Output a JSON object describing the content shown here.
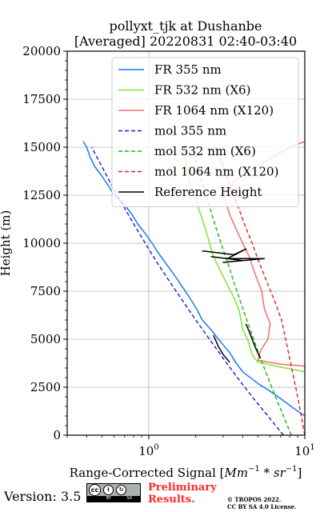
{
  "chart_data": {
    "type": "line",
    "title": "pollyxt_tjk at Dushanbe",
    "subtitle": "[Averaged] 20220831 02:40-03:40",
    "xlabel": "Range-Corrected Signal [",
    "xlabel_math": "Mm",
    "xlabel_exp1": "−1",
    "xlabel_mid": " * ",
    "xlabel_math2": "sr",
    "xlabel_exp2": "−1",
    "xlabel_end": "]",
    "ylabel": "Height (m)",
    "xscale": "log",
    "xlim": [
      0.3,
      10
    ],
    "ylim": [
      0,
      20000
    ],
    "xticks": [
      {
        "value": 1,
        "base": "10",
        "exp": "0"
      },
      {
        "value": 10,
        "base": "10",
        "exp": "1"
      }
    ],
    "yticks": [
      0,
      2500,
      5000,
      7500,
      10000,
      12500,
      15000,
      17500,
      20000
    ],
    "yticklabels": [
      "0",
      "2500",
      "5000",
      "7500",
      "10000",
      "12500",
      "15000",
      "17500",
      "20000"
    ],
    "grid": true,
    "legend_position": "top-right",
    "series": [
      {
        "name": "FR 355 nm",
        "color": "#1f77f4",
        "style": "solid",
        "points": [
          [
            10,
            1000
          ],
          [
            8.5,
            1400
          ],
          [
            6.5,
            2100
          ],
          [
            5,
            2700
          ],
          [
            4,
            3300
          ],
          [
            3.6,
            3800
          ],
          [
            3.3,
            4300
          ],
          [
            3,
            4700
          ],
          [
            2.8,
            5000
          ],
          [
            2.5,
            5500
          ],
          [
            2.2,
            6000
          ],
          [
            2.05,
            6500
          ],
          [
            1.85,
            7100
          ],
          [
            1.65,
            7700
          ],
          [
            1.5,
            8200
          ],
          [
            1.3,
            8900
          ],
          [
            1.15,
            9500
          ],
          [
            1.05,
            10000
          ],
          [
            0.95,
            10500
          ],
          [
            0.85,
            11000
          ],
          [
            0.78,
            11500
          ],
          [
            0.7,
            12000
          ],
          [
            0.6,
            12500
          ],
          [
            0.55,
            13000
          ],
          [
            0.5,
            13500
          ],
          [
            0.45,
            14000
          ],
          [
            0.42,
            14500
          ],
          [
            0.4,
            15000
          ],
          [
            0.38,
            15300
          ]
        ]
      },
      {
        "name": "FR 532 nm (X6)",
        "color": "#7ce82b",
        "style": "solid",
        "points": [
          [
            10,
            3300
          ],
          [
            7.5,
            3500
          ],
          [
            5,
            3800
          ],
          [
            4.6,
            4200
          ],
          [
            4.3,
            5000
          ],
          [
            4,
            5500
          ],
          [
            3.8,
            6500
          ],
          [
            3.5,
            7200
          ],
          [
            3.2,
            7800
          ],
          [
            2.9,
            8500
          ],
          [
            2.6,
            9300
          ],
          [
            2.45,
            10000
          ],
          [
            2.3,
            10800
          ],
          [
            2.15,
            11500
          ],
          [
            2.05,
            12000
          ],
          [
            1.95,
            12500
          ],
          [
            1.85,
            13000
          ],
          [
            1.8,
            13500
          ],
          [
            1.75,
            14000
          ],
          [
            1.72,
            14500
          ],
          [
            1.7,
            15000
          ]
        ]
      },
      {
        "name": "FR 1064 nm (X120)",
        "color": "#f26d6d",
        "style": "solid",
        "points": [
          [
            10,
            3600
          ],
          [
            7,
            3700
          ],
          [
            5,
            3900
          ],
          [
            5.2,
            4400
          ],
          [
            5.8,
            5000
          ],
          [
            6,
            5800
          ],
          [
            5.5,
            6600
          ],
          [
            5.3,
            7500
          ],
          [
            4.8,
            8400
          ],
          [
            4.4,
            9300
          ],
          [
            4,
            10000
          ],
          [
            3.6,
            10800
          ],
          [
            3.3,
            11500
          ],
          [
            3.1,
            12200
          ],
          [
            3,
            12500
          ],
          [
            3.5,
            13200
          ],
          [
            4.5,
            13800
          ],
          [
            6,
            14400
          ],
          [
            8,
            15000
          ],
          [
            10,
            15300
          ]
        ]
      },
      {
        "name": "mol 355 nm",
        "color": "#1a1ad6",
        "style": "dashed",
        "points": [
          [
            7.3,
            0
          ],
          [
            5.8,
            1000
          ],
          [
            4.6,
            2000
          ],
          [
            3.7,
            3000
          ],
          [
            3,
            4000
          ],
          [
            2.45,
            5000
          ],
          [
            2.0,
            6000
          ],
          [
            1.65,
            7000
          ],
          [
            1.36,
            8000
          ],
          [
            1.13,
            9000
          ],
          [
            0.95,
            10000
          ],
          [
            0.8,
            11000
          ],
          [
            0.68,
            12000
          ],
          [
            0.58,
            13000
          ],
          [
            0.5,
            14000
          ],
          [
            0.43,
            15000
          ]
        ]
      },
      {
        "name": "mol 532 nm (X6)",
        "color": "#12b812",
        "style": "dashed",
        "points": [
          [
            8.2,
            0
          ],
          [
            7.3,
            1000
          ],
          [
            6.5,
            2000
          ],
          [
            5.8,
            3000
          ],
          [
            5.2,
            4000
          ],
          [
            4.7,
            5000
          ],
          [
            4.25,
            6000
          ],
          [
            3.85,
            7000
          ],
          [
            3.5,
            8000
          ],
          [
            3.2,
            9000
          ],
          [
            2.9,
            10000
          ],
          [
            2.65,
            11000
          ],
          [
            2.43,
            12000
          ],
          [
            2.23,
            13000
          ],
          [
            2.05,
            14000
          ],
          [
            1.9,
            15000
          ]
        ]
      },
      {
        "name": "mol 1064 nm (X120)",
        "color": "#e02020",
        "style": "dashed",
        "points": [
          [
            10,
            0
          ],
          [
            9,
            2000
          ],
          [
            8,
            4000
          ],
          [
            7.1,
            6000
          ],
          [
            6.4,
            7000
          ],
          [
            5.7,
            8000
          ],
          [
            5.1,
            9000
          ],
          [
            4.6,
            10000
          ],
          [
            4.1,
            11000
          ],
          [
            3.7,
            12000
          ],
          [
            3.3,
            13000
          ],
          [
            3.0,
            14000
          ],
          [
            2.7,
            15000
          ]
        ]
      },
      {
        "name": "Reference Height",
        "color": "#000000",
        "style": "solid",
        "points": [
          [
            5.2,
            4000
          ],
          [
            4.8,
            4600
          ],
          [
            4.5,
            5200
          ],
          [
            4.2,
            5800
          ]
        ]
      },
      {
        "name": "",
        "color": "#000000",
        "style": "solid",
        "points": [
          [
            2.6,
            5200
          ],
          [
            2.8,
            4600
          ],
          [
            3.0,
            4200
          ],
          [
            3.3,
            3800
          ]
        ]
      },
      {
        "name": "",
        "color": "#000000",
        "style": "solid",
        "points": [
          [
            2.2,
            9600
          ],
          [
            3.5,
            9400
          ],
          [
            4.2,
            9700
          ],
          [
            3.2,
            9200
          ],
          [
            5.5,
            9200
          ],
          [
            3.0,
            9000
          ],
          [
            4.0,
            9100
          ],
          [
            2.5,
            9300
          ]
        ]
      }
    ]
  },
  "footer": {
    "version": "Version: 3.5",
    "prelim_line1": "Preliminary",
    "prelim_line2": "Results.",
    "copyright_line1": "© TROPOS 2022.",
    "copyright_line2": "CC BY SA 4.0 License.",
    "badge_top": "cc",
    "badge_bottom_left": "BY",
    "badge_bottom_right": "SA"
  }
}
